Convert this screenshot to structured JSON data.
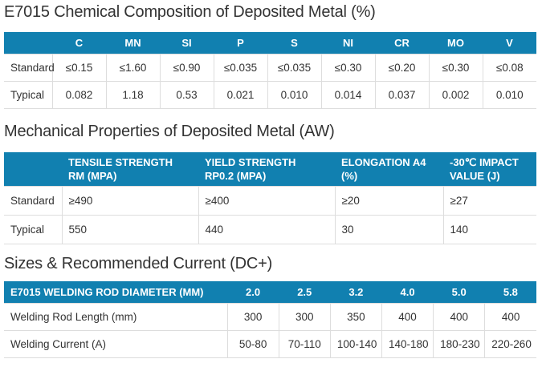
{
  "theme": {
    "header_bg": "#1180b0",
    "header_text": "#ffffff",
    "body_text": "#333333",
    "border": "#dddddd",
    "page_bg": "#ffffff"
  },
  "tables": [
    {
      "title": "E7015 Chemical Composition of Deposited Metal (%)",
      "header": [
        "",
        "C",
        "MN",
        "SI",
        "P",
        "S",
        "NI",
        "CR",
        "MO",
        "V"
      ],
      "rows": [
        [
          "Standard",
          "≤0.15",
          "≤1.60",
          "≤0.90",
          "≤0.035",
          "≤0.035",
          "≤0.30",
          "≤0.20",
          "≤0.30",
          "≤0.08"
        ],
        [
          "Typical",
          "0.082",
          "1.18",
          "0.53",
          "0.021",
          "0.010",
          "0.014",
          "0.037",
          "0.002",
          "0.010"
        ]
      ]
    },
    {
      "title": "Mechanical Properties of Deposited Metal (AW)",
      "header": [
        "",
        "TENSILE STRENGTH RM (MPA)",
        "YIELD STRENGTH RP0.2 (MPA)",
        "ELONGATION A4 (%)",
        "-30℃ IMPACT VALUE (J)"
      ],
      "rows": [
        [
          "Standard",
          "≥490",
          "≥400",
          "≥20",
          "≥27"
        ],
        [
          "Typical",
          "550",
          "440",
          "30",
          "140"
        ]
      ]
    },
    {
      "title": "Sizes & Recommended Current (DC+)",
      "header": [
        "E7015 WELDING ROD DIAMETER (MM)",
        "2.0",
        "2.5",
        "3.2",
        "4.0",
        "5.0",
        "5.8"
      ],
      "rows": [
        [
          "Welding Rod Length (mm)",
          "300",
          "300",
          "350",
          "400",
          "400",
          "400"
        ],
        [
          "Welding Current (A)",
          "50-80",
          "70-110",
          "100-140",
          "140-180",
          "180-230",
          "220-260"
        ]
      ]
    }
  ]
}
